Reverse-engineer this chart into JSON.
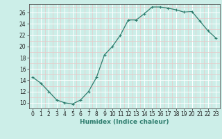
{
  "x": [
    0,
    1,
    2,
    3,
    4,
    5,
    6,
    7,
    8,
    9,
    10,
    11,
    12,
    13,
    14,
    15,
    16,
    17,
    18,
    19,
    20,
    21,
    22,
    23
  ],
  "y": [
    14.5,
    13.5,
    12.0,
    10.5,
    10.0,
    9.8,
    10.5,
    12.0,
    14.5,
    18.5,
    20.0,
    22.0,
    24.7,
    24.7,
    25.8,
    27.0,
    27.0,
    26.8,
    26.5,
    26.1,
    26.2,
    24.5,
    22.8,
    21.5
  ],
  "line_color": "#2e7d6e",
  "marker": "+",
  "bg_color": "#cceee8",
  "grid_major_color": "#ffffff",
  "grid_minor_color": "#e8c8c8",
  "xlabel": "Humidex (Indice chaleur)",
  "xlim": [
    -0.5,
    23.5
  ],
  "ylim": [
    9.0,
    27.5
  ],
  "yticks": [
    10,
    12,
    14,
    16,
    18,
    20,
    22,
    24,
    26
  ],
  "xticks": [
    0,
    1,
    2,
    3,
    4,
    5,
    6,
    7,
    8,
    9,
    10,
    11,
    12,
    13,
    14,
    15,
    16,
    17,
    18,
    19,
    20,
    21,
    22,
    23
  ],
  "tick_fontsize": 5.5,
  "xlabel_fontsize": 6.5
}
